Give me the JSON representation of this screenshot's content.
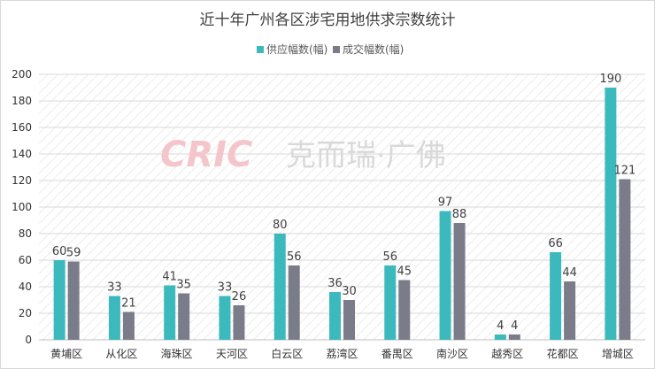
{
  "watermark": {
    "brand": "CRIC",
    "suffix": "克而瑞·广佛"
  },
  "colors": {
    "supply": "#3cb9bd",
    "deal": "#7a7c89",
    "grid": "#d9d9d9",
    "stripe": "#ebebeb"
  },
  "chart_data": {
    "type": "bar",
    "title": "近十年广州各区涉宅用地供求宗数统计",
    "categories": [
      "黄埔区",
      "从化区",
      "海珠区",
      "天河区",
      "白云区",
      "荔湾区",
      "番禺区",
      "南沙区",
      "越秀区",
      "花都区",
      "增城区"
    ],
    "series": [
      {
        "name": "供应幅数(幅)",
        "values": [
          60,
          33,
          41,
          33,
          80,
          36,
          56,
          97,
          4,
          66,
          190
        ]
      },
      {
        "name": "成交幅数(幅)",
        "values": [
          59,
          21,
          35,
          26,
          56,
          30,
          45,
          88,
          4,
          44,
          121
        ]
      }
    ],
    "ylim": [
      0,
      200
    ],
    "yticks": [
      0,
      20,
      40,
      60,
      80,
      100,
      120,
      140,
      160,
      180,
      200
    ],
    "grid": true,
    "legend_position": "top-center",
    "data_labels": true
  }
}
